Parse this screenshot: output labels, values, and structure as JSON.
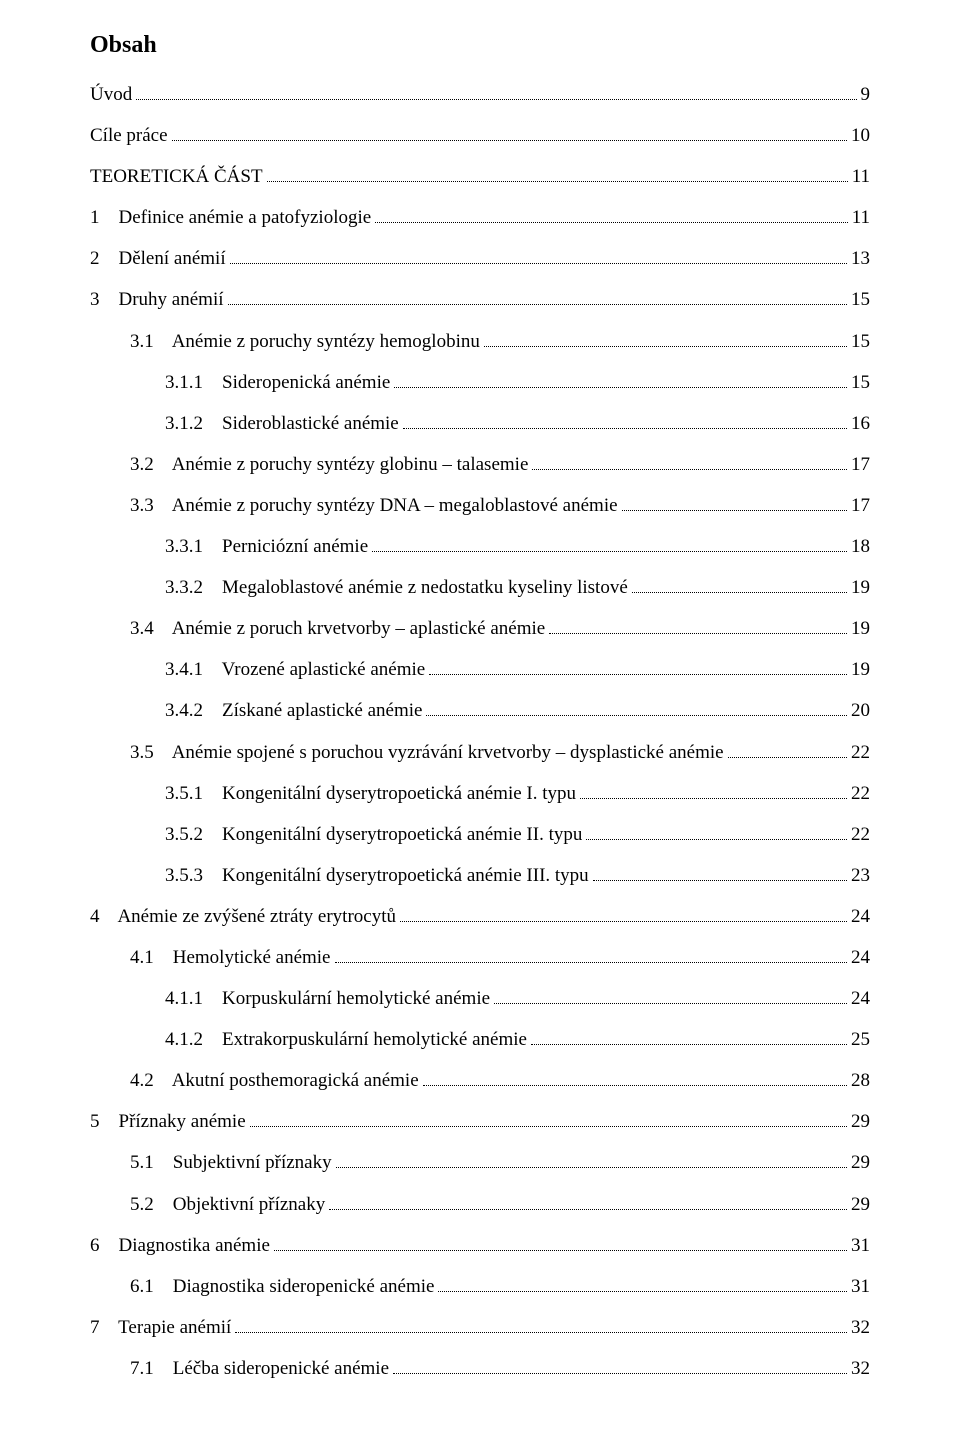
{
  "title": "Obsah",
  "entries": [
    {
      "label": "Úvod",
      "page": "9",
      "indent": 0
    },
    {
      "label": "Cíle práce",
      "page": "10",
      "indent": 0
    },
    {
      "label": "TEORETICKÁ ČÁST",
      "page": "11",
      "indent": 0
    },
    {
      "label": "1    Definice anémie a patofyziologie",
      "page": "11",
      "indent": 1
    },
    {
      "label": "2    Dělení anémií",
      "page": "13",
      "indent": 1
    },
    {
      "label": "3    Druhy anémií",
      "page": "15",
      "indent": 1
    },
    {
      "label": "3.1    Anémie z poruchy syntézy hemoglobinu",
      "page": "15",
      "indent": 2
    },
    {
      "label": "3.1.1    Sideropenická anémie",
      "page": "15",
      "indent": 3
    },
    {
      "label": "3.1.2    Sideroblastické anémie",
      "page": "16",
      "indent": 3
    },
    {
      "label": "3.2    Anémie z poruchy syntézy globinu – talasemie",
      "page": "17",
      "indent": 2
    },
    {
      "label": "3.3    Anémie z poruchy syntézy DNA – megaloblastové anémie",
      "page": "17",
      "indent": 2
    },
    {
      "label": "3.3.1    Perniciózní anémie",
      "page": "18",
      "indent": 3
    },
    {
      "label": "3.3.2    Megaloblastové anémie z nedostatku kyseliny listové",
      "page": "19",
      "indent": 3
    },
    {
      "label": "3.4    Anémie z poruch krvetvorby – aplastické anémie",
      "page": "19",
      "indent": 2
    },
    {
      "label": "3.4.1    Vrozené aplastické anémie",
      "page": "19",
      "indent": 3
    },
    {
      "label": "3.4.2    Získané aplastické anémie",
      "page": "20",
      "indent": 3
    },
    {
      "label": "3.5    Anémie spojené s poruchou vyzrávání krvetvorby – dysplastické anémie",
      "page": "22",
      "indent": 2
    },
    {
      "label": "3.5.1    Kongenitální dyserytropoetická anémie I. typu",
      "page": "22",
      "indent": 3
    },
    {
      "label": "3.5.2    Kongenitální dyserytropoetická anémie II. typu",
      "page": "22",
      "indent": 3
    },
    {
      "label": "3.5.3    Kongenitální dyserytropoetická anémie III. typu",
      "page": "23",
      "indent": 3
    },
    {
      "label": "4    Anémie ze zvýšené ztráty erytrocytů",
      "page": "24",
      "indent": 1
    },
    {
      "label": "4.1    Hemolytické anémie",
      "page": "24",
      "indent": 2
    },
    {
      "label": "4.1.1    Korpuskulární hemolytické anémie",
      "page": "24",
      "indent": 3
    },
    {
      "label": "4.1.2    Extrakorpuskulární hemolytické anémie",
      "page": "25",
      "indent": 3
    },
    {
      "label": "4.2    Akutní posthemoragická anémie",
      "page": "28",
      "indent": 2
    },
    {
      "label": "5    Příznaky anémie",
      "page": "29",
      "indent": 1
    },
    {
      "label": "5.1    Subjektivní příznaky",
      "page": "29",
      "indent": 2
    },
    {
      "label": "5.2    Objektivní příznaky",
      "page": "29",
      "indent": 2
    },
    {
      "label": "6    Diagnostika anémie",
      "page": "31",
      "indent": 1
    },
    {
      "label": "6.1    Diagnostika sideropenické anémie",
      "page": "31",
      "indent": 2
    },
    {
      "label": "7    Terapie anémií",
      "page": "32",
      "indent": 1
    },
    {
      "label": "7.1    Léčba sideropenické anémie",
      "page": "32",
      "indent": 2
    }
  ]
}
